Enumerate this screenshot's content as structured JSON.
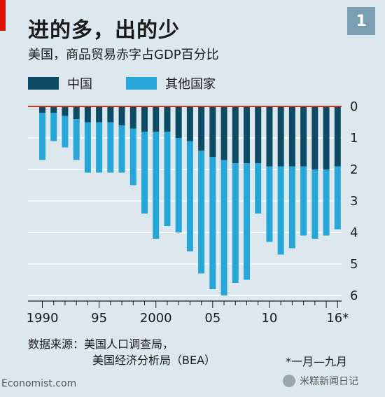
{
  "header": {
    "title": "进的多，出的少",
    "subtitle": "美国，商品贸易赤字占GDP百分比",
    "badge": "1"
  },
  "legend": [
    {
      "label": "中国",
      "color": "#0d4a63"
    },
    {
      "label": "其他国家",
      "color": "#26a6d9"
    }
  ],
  "chart_data": {
    "type": "bar",
    "stacked": true,
    "categories": [
      "1990",
      "1991",
      "1992",
      "1993",
      "1994",
      "1995",
      "1996",
      "1997",
      "1998",
      "1999",
      "2000",
      "2001",
      "2002",
      "2003",
      "2004",
      "2005",
      "2006",
      "2007",
      "2008",
      "2009",
      "2010",
      "2011",
      "2012",
      "2013",
      "2014",
      "2015",
      "2016*"
    ],
    "series": [
      {
        "name": "中国",
        "values": [
          0.2,
          0.2,
          0.3,
          0.4,
          0.5,
          0.5,
          0.5,
          0.6,
          0.7,
          0.8,
          0.8,
          0.8,
          1.0,
          1.1,
          1.4,
          1.6,
          1.7,
          1.8,
          1.8,
          1.8,
          1.9,
          1.9,
          1.9,
          1.9,
          2.0,
          2.0,
          1.9
        ]
      },
      {
        "name": "其他国家",
        "values": [
          1.5,
          0.9,
          1.0,
          1.3,
          1.6,
          1.6,
          1.6,
          1.5,
          1.8,
          2.6,
          3.4,
          3.0,
          3.0,
          3.5,
          3.9,
          4.2,
          4.3,
          3.8,
          3.7,
          1.6,
          2.4,
          2.8,
          2.6,
          2.2,
          2.2,
          2.1,
          2.0
        ]
      }
    ],
    "y_tick_labels": [
      "0",
      "1",
      "2",
      "3",
      "4",
      "5",
      "6"
    ],
    "ylim": [
      0,
      6
    ],
    "inverted": true,
    "x_tick_labels": [
      "1990",
      "95",
      "2000",
      "05",
      "10",
      "16*"
    ],
    "grid": true
  },
  "source": {
    "line1": "数据来源：美国人口调查局，",
    "line2": "美国经济分析局（BEA）"
  },
  "note": "*一月—九月",
  "footer": {
    "left": "Economist.com",
    "right": "米糕新闻日记"
  }
}
